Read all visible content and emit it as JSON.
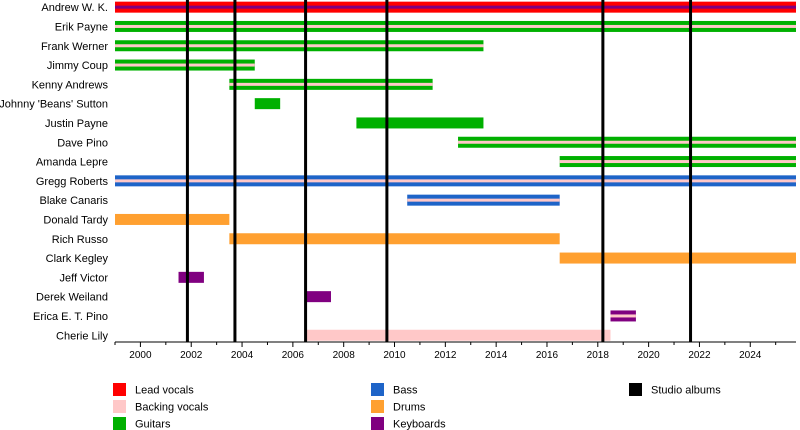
{
  "chart_data": {
    "type": "timeline",
    "x_range": [
      1999.0,
      2025.8
    ],
    "x_ticks": [
      2000,
      2002,
      2004,
      2006,
      2008,
      2010,
      2012,
      2014,
      2016,
      2018,
      2020,
      2022,
      2024
    ],
    "grid": false,
    "legend_placement": "bottom",
    "roles": [
      {
        "key": "lead_vocals",
        "name": "Lead vocals",
        "color": "#ff0000"
      },
      {
        "key": "backing_vocals",
        "name": "Backing vocals",
        "color": "#ffc8c8"
      },
      {
        "key": "guitars",
        "name": "Guitars",
        "color": "#00b000"
      },
      {
        "key": "bass",
        "name": "Bass",
        "color": "#1e64c8"
      },
      {
        "key": "drums",
        "name": "Drums",
        "color": "#ffa030"
      },
      {
        "key": "keyboards",
        "name": "Keyboards",
        "color": "#800080"
      },
      {
        "key": "studio_albums",
        "name": "Studio albums",
        "color": "#000000"
      }
    ],
    "studio_albums": [
      2001.85,
      2003.72,
      2006.5,
      2009.7,
      2018.2,
      2021.65
    ],
    "members": [
      {
        "name": "Andrew W. K.",
        "periods": [
          {
            "start": 1999.0,
            "end": 2025.8,
            "roles": [
              "lead_vocals",
              "keyboards"
            ]
          }
        ]
      },
      {
        "name": "Erik Payne",
        "periods": [
          {
            "start": 1999.0,
            "end": 2025.8,
            "roles": [
              "guitars",
              "backing_vocals"
            ]
          }
        ]
      },
      {
        "name": "Frank Werner",
        "periods": [
          {
            "start": 1999.0,
            "end": 2013.5,
            "roles": [
              "guitars",
              "backing_vocals"
            ]
          }
        ]
      },
      {
        "name": "Jimmy Coup",
        "periods": [
          {
            "start": 1999.0,
            "end": 2004.5,
            "roles": [
              "guitars",
              "backing_vocals"
            ]
          }
        ]
      },
      {
        "name": "Kenny Andrews",
        "periods": [
          {
            "start": 2003.5,
            "end": 2011.5,
            "roles": [
              "guitars",
              "backing_vocals"
            ]
          }
        ]
      },
      {
        "name": "Johnny 'Beans' Sutton",
        "periods": [
          {
            "start": 2004.5,
            "end": 2005.5,
            "roles": [
              "guitars"
            ]
          }
        ]
      },
      {
        "name": "Justin Payne",
        "periods": [
          {
            "start": 2008.5,
            "end": 2013.5,
            "roles": [
              "guitars"
            ]
          }
        ]
      },
      {
        "name": "Dave Pino",
        "periods": [
          {
            "start": 2012.5,
            "end": 2025.8,
            "roles": [
              "guitars",
              "backing_vocals"
            ]
          }
        ]
      },
      {
        "name": "Amanda Lepre",
        "periods": [
          {
            "start": 2016.5,
            "end": 2025.8,
            "roles": [
              "guitars",
              "backing_vocals"
            ]
          }
        ]
      },
      {
        "name": "Gregg Roberts",
        "periods": [
          {
            "start": 1999.0,
            "end": 2025.8,
            "roles": [
              "bass",
              "backing_vocals"
            ]
          }
        ]
      },
      {
        "name": "Blake Canaris",
        "periods": [
          {
            "start": 2010.5,
            "end": 2016.5,
            "roles": [
              "bass",
              "backing_vocals"
            ]
          }
        ]
      },
      {
        "name": "Donald Tardy",
        "periods": [
          {
            "start": 1999.0,
            "end": 2003.5,
            "roles": [
              "drums"
            ]
          }
        ]
      },
      {
        "name": "Rich Russo",
        "periods": [
          {
            "start": 2003.5,
            "end": 2016.5,
            "roles": [
              "drums"
            ]
          }
        ]
      },
      {
        "name": "Clark Kegley",
        "periods": [
          {
            "start": 2016.5,
            "end": 2025.8,
            "roles": [
              "drums"
            ]
          }
        ]
      },
      {
        "name": "Jeff Victor",
        "periods": [
          {
            "start": 2001.5,
            "end": 2002.5,
            "roles": [
              "keyboards"
            ]
          }
        ]
      },
      {
        "name": "Derek Weiland",
        "periods": [
          {
            "start": 2006.5,
            "end": 2007.5,
            "roles": [
              "keyboards"
            ]
          }
        ]
      },
      {
        "name": "Erica E. T. Pino",
        "periods": [
          {
            "start": 2018.5,
            "end": 2019.5,
            "roles": [
              "keyboards",
              "backing_vocals"
            ]
          }
        ]
      },
      {
        "name": "Cherie Lily",
        "periods": [
          {
            "start": 2006.5,
            "end": 2018.5,
            "roles": [
              "backing_vocals"
            ]
          }
        ]
      }
    ]
  }
}
